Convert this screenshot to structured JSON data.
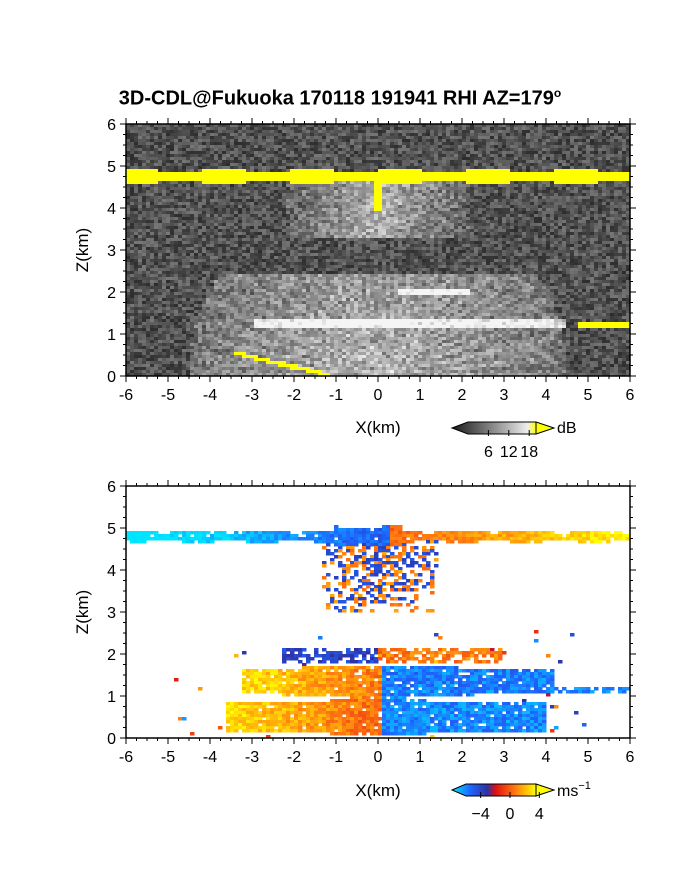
{
  "title": {
    "main": "3D-CDL@Fukuoka 170118 191941 RHI AZ=179",
    "sup": "o"
  },
  "chart_data": [
    {
      "type": "heatmap",
      "panel": "reflectivity",
      "xlabel": "X(km)",
      "ylabel": "Z(km)",
      "xlim": [
        -6,
        6
      ],
      "ylim": [
        0,
        6
      ],
      "xticks": [
        "-6",
        "-5",
        "-4",
        "-3",
        "-2",
        "-1",
        "0",
        "1",
        "2",
        "3",
        "4",
        "5",
        "6"
      ],
      "yticks": [
        "0",
        "1",
        "2",
        "3",
        "4",
        "5",
        "6"
      ],
      "colorbar": {
        "unit": "dB",
        "ticks": [
          "6",
          "12",
          "18"
        ],
        "range": [
          0,
          20
        ]
      },
      "features": [
        {
          "name": "top layer",
          "x": [
            -6,
            6
          ],
          "z": 4.75,
          "value_dB": 20
        },
        {
          "name": "low layer",
          "x": [
            4.8,
            6
          ],
          "z": 1.2,
          "value_dB": 20
        },
        {
          "name": "ground clutter",
          "x": [
            -3.4,
            -1.1
          ],
          "z": [
            0.55,
            0.0
          ],
          "value_dB": 20
        }
      ]
    },
    {
      "type": "heatmap",
      "panel": "doppler velocity",
      "xlabel": "X(km)",
      "ylabel": "Z(km)",
      "xlim": [
        -6,
        6
      ],
      "ylim": [
        0,
        6
      ],
      "xticks": [
        "-6",
        "-5",
        "-4",
        "-3",
        "-2",
        "-1",
        "0",
        "1",
        "2",
        "3",
        "4",
        "5",
        "6"
      ],
      "yticks": [
        "0",
        "1",
        "2",
        "3",
        "4",
        "5",
        "6"
      ],
      "colorbar": {
        "unit": "ms",
        "unit_sup": "−1",
        "ticks": [
          "−4",
          "0",
          "4"
        ],
        "range": [
          -6,
          6
        ]
      },
      "features": [
        {
          "name": "top layer",
          "x": [
            -6,
            6
          ],
          "z": 4.8,
          "velocity": "negative for x<0, positive for x>0"
        },
        {
          "name": "mid layer",
          "x": [
            -3,
            4
          ],
          "z": 1.3,
          "velocity": "positive for x<0, negative for x>0"
        },
        {
          "name": "low layer",
          "x": [
            -3.5,
            4
          ],
          "z": 0.5,
          "velocity": "positive for x<0, negative for x>0"
        }
      ]
    }
  ]
}
